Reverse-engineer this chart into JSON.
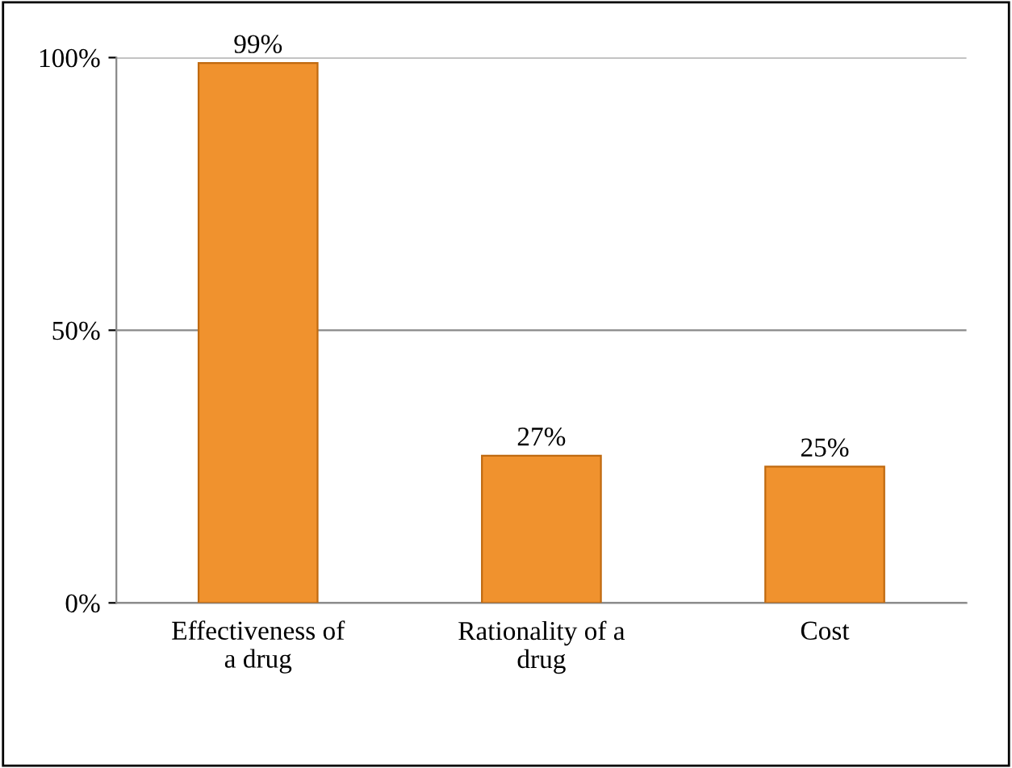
{
  "chart_data": {
    "type": "bar",
    "categories": [
      "Effectiveness of\na drug",
      "Rationality of a\ndrug",
      "Cost"
    ],
    "values": [
      99,
      27,
      25
    ],
    "color": "#f0922e",
    "value_labels": [
      "99%",
      "27%",
      "25%"
    ],
    "ylim": [
      0,
      100
    ],
    "yticks": [
      {
        "value": 0,
        "label": "0%"
      },
      {
        "value": 50,
        "label": "50%"
      },
      {
        "value": 100,
        "label": "100%"
      }
    ],
    "grid": "y",
    "legend": false
  }
}
